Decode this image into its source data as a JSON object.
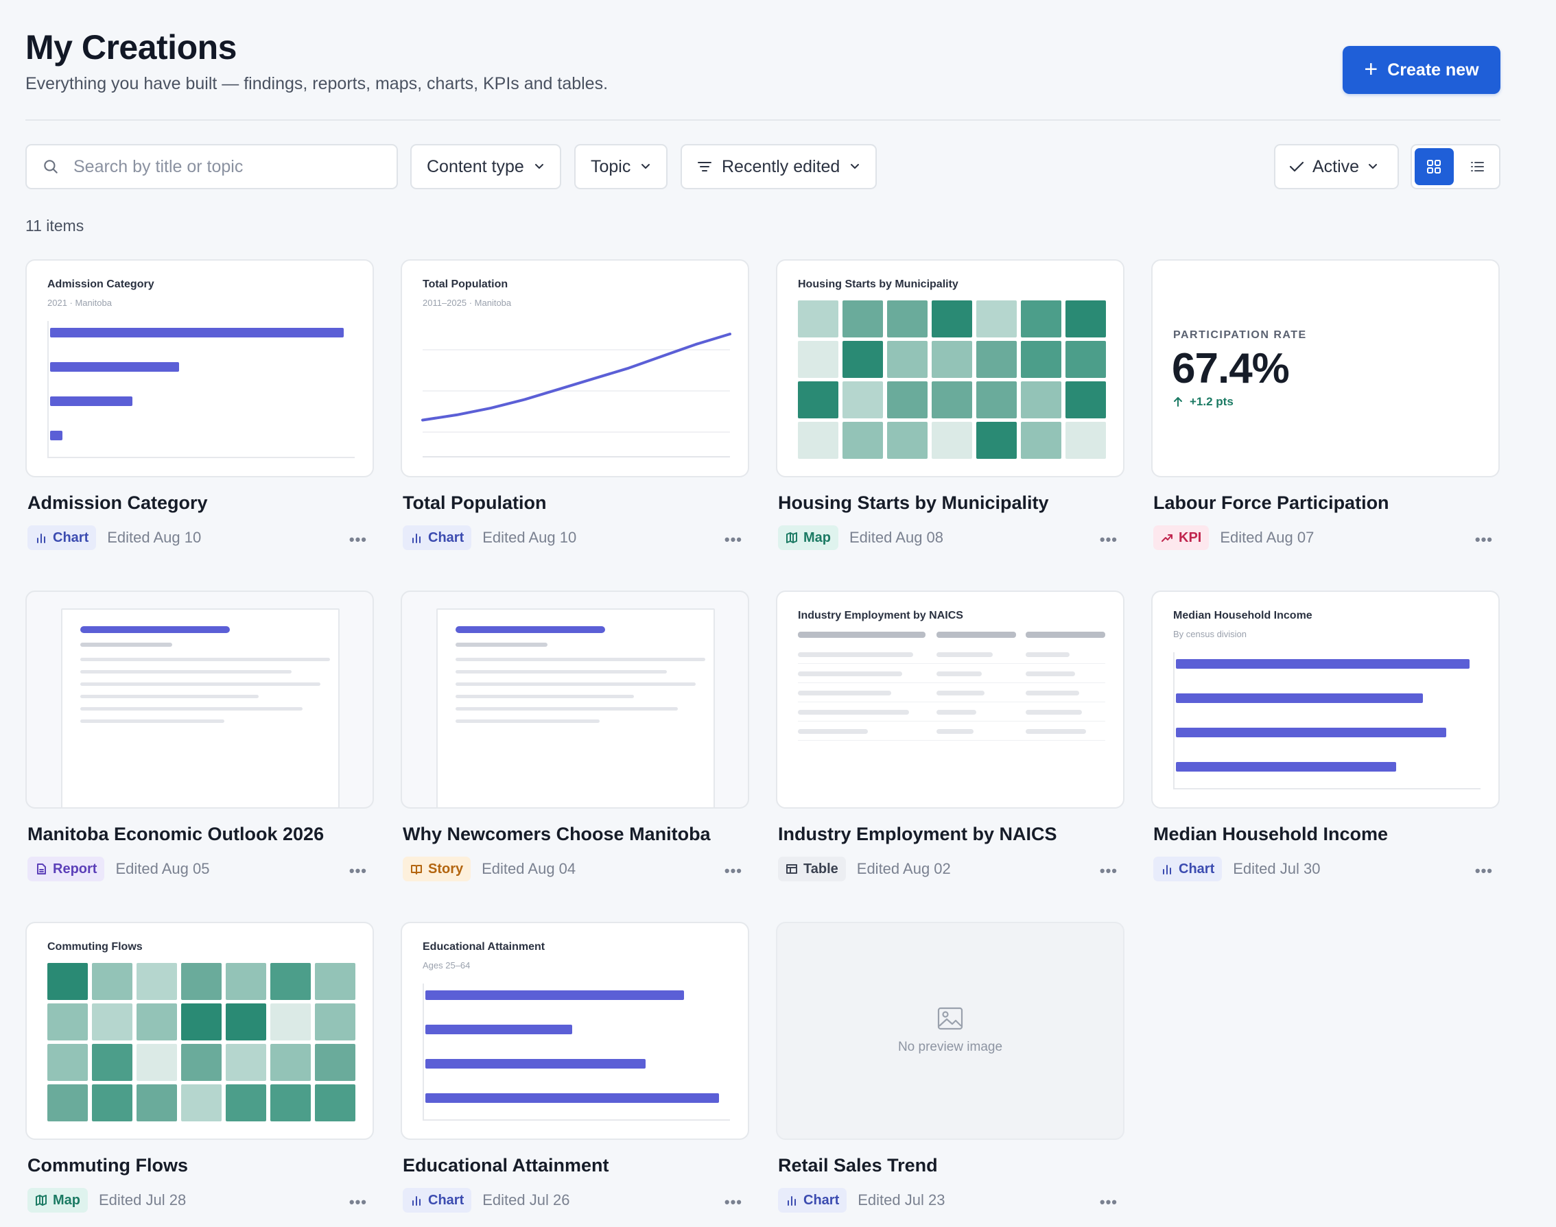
{
  "header": {
    "title": "My Creations",
    "subtitle": "Everything you have built — findings, reports, maps, charts, KPIs and tables.",
    "create_label": "Create new"
  },
  "toolbar": {
    "search_placeholder": "Search by title or topic",
    "content_type_label": "Content type",
    "topic_label": "Topic",
    "sort_label": "Recently edited",
    "status_label": "Active",
    "view_selected": "grid"
  },
  "count_label": "11 items",
  "colors": {
    "accent": "#1f5fd8",
    "chart_bar": "#5b5fd6",
    "map_palette": [
      "#2a8a74",
      "#4c9e8a",
      "#6aab9b",
      "#93c3b7",
      "#b5d6ce",
      "#dbeae6"
    ]
  },
  "cards": [
    {
      "title": "Admission Category",
      "type": "Chart",
      "edited": "Edited Aug 10",
      "preview": {
        "kind": "hbar",
        "title": "Admission Category",
        "subtitle": "2021 · Manitoba",
        "values": [
          100,
          44,
          28,
          4
        ]
      }
    },
    {
      "title": "Total Population",
      "type": "Chart",
      "edited": "Edited Aug 10",
      "preview": {
        "kind": "line",
        "title": "Total Population",
        "subtitle": "2011–2025 · Manitoba",
        "values": [
          10,
          16,
          24,
          34,
          46,
          58,
          70,
          84,
          98,
          110
        ]
      }
    },
    {
      "title": "Housing Starts by Municipality",
      "type": "Map",
      "edited": "Edited Aug 08",
      "preview": {
        "kind": "heatmap",
        "title": "Housing Starts by Municipality",
        "grid": [
          [
            4,
            2,
            2,
            0,
            4,
            1,
            0
          ],
          [
            5,
            0,
            3,
            3,
            2,
            1,
            1
          ],
          [
            0,
            4,
            2,
            2,
            2,
            3,
            0
          ],
          [
            5,
            3,
            3,
            5,
            0,
            3,
            5
          ]
        ]
      }
    },
    {
      "title": "Labour Force Participation",
      "type": "KPI",
      "edited": "Edited Aug 07",
      "preview": {
        "kind": "kpi",
        "label": "PARTICIPATION RATE",
        "value": "67.4%",
        "delta": "+1.2 pts"
      }
    },
    {
      "title": "Manitoba Economic Outlook 2026",
      "type": "Report",
      "edited": "Edited Aug 05",
      "preview": {
        "kind": "doc"
      }
    },
    {
      "title": "Why Newcomers Choose Manitoba",
      "type": "Story",
      "edited": "Edited Aug 04",
      "preview": {
        "kind": "doc"
      }
    },
    {
      "title": "Industry Employment by NAICS",
      "type": "Table",
      "edited": "Edited Aug 02",
      "preview": {
        "kind": "table",
        "title": "Industry Employment by NAICS"
      }
    },
    {
      "title": "Median Household Income",
      "type": "Chart",
      "edited": "Edited Jul 30",
      "preview": {
        "kind": "hbar",
        "title": "Median Household Income",
        "subtitle": "By census division",
        "values": [
          100,
          84,
          92,
          75
        ]
      }
    },
    {
      "title": "Commuting Flows",
      "type": "Map",
      "edited": "Edited Jul 28",
      "preview": {
        "kind": "heatmap",
        "title": "Commuting Flows",
        "grid": [
          [
            0,
            3,
            4,
            2,
            3,
            1,
            3
          ],
          [
            3,
            4,
            3,
            0,
            0,
            5,
            3
          ],
          [
            3,
            1,
            5,
            2,
            4,
            3,
            2
          ],
          [
            2,
            1,
            2,
            4,
            1,
            1,
            1
          ]
        ]
      }
    },
    {
      "title": "Educational Attainment",
      "type": "Chart",
      "edited": "Edited Jul 26",
      "preview": {
        "kind": "hbar",
        "title": "Educational Attainment",
        "subtitle": "Ages 25–64",
        "values": [
          88,
          50,
          75,
          100
        ]
      }
    },
    {
      "title": "Retail Sales Trend",
      "type": "Chart",
      "edited": "Edited Jul 23",
      "preview": {
        "kind": "empty",
        "text": "No preview image"
      }
    }
  ]
}
